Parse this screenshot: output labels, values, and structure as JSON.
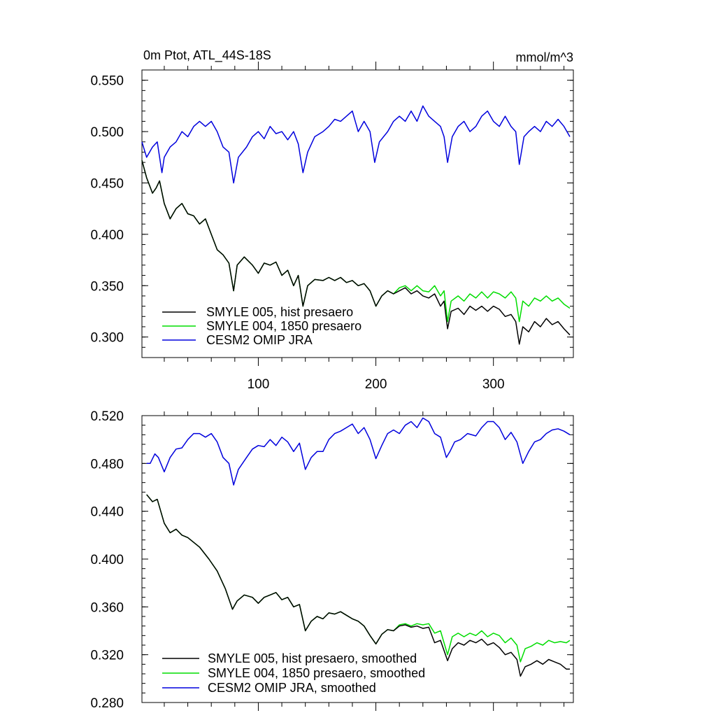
{
  "chart_data": [
    {
      "type": "line",
      "title": "0m Ptot, ATL_44S-18S",
      "units": "mmol/m^3",
      "xlim": [
        1,
        368
      ],
      "ylim": [
        0.28,
        0.56
      ],
      "x_ticks": [
        100,
        200,
        300
      ],
      "x_tick_labels": [
        "100",
        "200",
        "300"
      ],
      "y_ticks": [
        0.3,
        0.35,
        0.4,
        0.45,
        0.5,
        0.55
      ],
      "y_tick_labels": [
        "0.300",
        "0.350",
        "0.400",
        "0.450",
        "0.500",
        "0.550"
      ],
      "grid": false,
      "legend_position": "bottom-left",
      "series": [
        {
          "name": "SMYLE 005, hist presaero",
          "color": "#000000",
          "x": [
            1,
            5,
            10,
            13,
            16,
            20,
            25,
            30,
            35,
            40,
            45,
            50,
            55,
            60,
            65,
            70,
            75,
            79,
            82,
            88,
            95,
            100,
            105,
            110,
            115,
            120,
            125,
            130,
            134,
            138,
            142,
            148,
            155,
            160,
            165,
            170,
            175,
            180,
            185,
            190,
            195,
            200,
            205,
            210,
            215,
            220,
            225,
            230,
            235,
            240,
            245,
            250,
            255,
            258,
            261,
            264,
            270,
            275,
            280,
            285,
            290,
            295,
            300,
            305,
            310,
            315,
            319,
            322,
            325,
            330,
            335,
            340,
            345,
            350,
            355,
            360,
            365
          ],
          "y": [
            0.472,
            0.455,
            0.44,
            0.445,
            0.452,
            0.43,
            0.415,
            0.425,
            0.43,
            0.42,
            0.418,
            0.41,
            0.415,
            0.4,
            0.385,
            0.38,
            0.372,
            0.345,
            0.37,
            0.378,
            0.37,
            0.362,
            0.372,
            0.37,
            0.373,
            0.36,
            0.365,
            0.35,
            0.36,
            0.33,
            0.35,
            0.356,
            0.355,
            0.358,
            0.355,
            0.358,
            0.353,
            0.355,
            0.35,
            0.352,
            0.345,
            0.33,
            0.34,
            0.345,
            0.342,
            0.345,
            0.348,
            0.342,
            0.345,
            0.34,
            0.338,
            0.342,
            0.33,
            0.335,
            0.308,
            0.325,
            0.328,
            0.322,
            0.33,
            0.326,
            0.33,
            0.325,
            0.33,
            0.327,
            0.32,
            0.322,
            0.315,
            0.293,
            0.31,
            0.305,
            0.315,
            0.31,
            0.318,
            0.312,
            0.315,
            0.308,
            0.302
          ]
        },
        {
          "name": "SMYLE 004, 1850 presaero",
          "color": "#00dd00",
          "x": [
            1,
            5,
            10,
            13,
            16,
            20,
            25,
            30,
            35,
            40,
            45,
            50,
            55,
            60,
            65,
            70,
            75,
            79,
            82,
            88,
            95,
            100,
            105,
            110,
            115,
            120,
            125,
            130,
            134,
            138,
            142,
            148,
            155,
            160,
            165,
            170,
            175,
            180,
            185,
            190,
            195,
            200,
            205,
            210,
            215,
            220,
            225,
            230,
            235,
            240,
            245,
            250,
            255,
            258,
            261,
            264,
            270,
            275,
            280,
            285,
            290,
            295,
            300,
            305,
            310,
            315,
            319,
            322,
            325,
            330,
            335,
            340,
            345,
            350,
            355,
            360,
            365
          ],
          "y": [
            0.472,
            0.455,
            0.44,
            0.445,
            0.452,
            0.43,
            0.415,
            0.425,
            0.43,
            0.42,
            0.418,
            0.41,
            0.415,
            0.4,
            0.385,
            0.38,
            0.372,
            0.345,
            0.37,
            0.378,
            0.37,
            0.362,
            0.372,
            0.37,
            0.373,
            0.36,
            0.365,
            0.35,
            0.36,
            0.33,
            0.35,
            0.356,
            0.355,
            0.358,
            0.355,
            0.358,
            0.353,
            0.355,
            0.35,
            0.352,
            0.345,
            0.33,
            0.34,
            0.345,
            0.342,
            0.348,
            0.35,
            0.345,
            0.35,
            0.345,
            0.344,
            0.35,
            0.34,
            0.345,
            0.315,
            0.335,
            0.34,
            0.335,
            0.342,
            0.338,
            0.344,
            0.338,
            0.344,
            0.342,
            0.338,
            0.344,
            0.338,
            0.315,
            0.335,
            0.33,
            0.338,
            0.335,
            0.34,
            0.335,
            0.338,
            0.332,
            0.328
          ]
        },
        {
          "name": "CESM2 OMIP JRA",
          "color": "#0000dd",
          "x": [
            1,
            5,
            10,
            14,
            18,
            20,
            25,
            30,
            35,
            40,
            45,
            50,
            55,
            60,
            65,
            70,
            75,
            79,
            83,
            90,
            95,
            100,
            105,
            110,
            115,
            120,
            125,
            130,
            134,
            138,
            142,
            148,
            155,
            160,
            165,
            170,
            175,
            180,
            185,
            190,
            195,
            199,
            203,
            210,
            215,
            220,
            225,
            230,
            235,
            240,
            245,
            250,
            255,
            258,
            261,
            265,
            270,
            275,
            280,
            285,
            290,
            295,
            300,
            305,
            310,
            315,
            319,
            322,
            326,
            330,
            335,
            340,
            345,
            350,
            355,
            360,
            365
          ],
          "y": [
            0.49,
            0.475,
            0.485,
            0.49,
            0.46,
            0.475,
            0.485,
            0.49,
            0.5,
            0.495,
            0.505,
            0.51,
            0.505,
            0.51,
            0.5,
            0.485,
            0.48,
            0.45,
            0.475,
            0.485,
            0.495,
            0.5,
            0.493,
            0.505,
            0.498,
            0.5,
            0.492,
            0.5,
            0.488,
            0.46,
            0.48,
            0.495,
            0.5,
            0.505,
            0.512,
            0.51,
            0.515,
            0.52,
            0.5,
            0.51,
            0.5,
            0.47,
            0.49,
            0.5,
            0.51,
            0.515,
            0.51,
            0.52,
            0.51,
            0.525,
            0.515,
            0.51,
            0.505,
            0.495,
            0.47,
            0.495,
            0.505,
            0.51,
            0.5,
            0.505,
            0.515,
            0.52,
            0.51,
            0.505,
            0.515,
            0.505,
            0.5,
            0.468,
            0.495,
            0.5,
            0.505,
            0.5,
            0.51,
            0.505,
            0.512,
            0.505,
            0.495
          ]
        }
      ]
    },
    {
      "type": "line",
      "xlim": [
        1,
        368
      ],
      "ylim": [
        0.28,
        0.52
      ],
      "x_ticks": [
        100,
        200,
        300
      ],
      "y_ticks": [
        0.28,
        0.32,
        0.36,
        0.4,
        0.44,
        0.48,
        0.52
      ],
      "y_tick_labels": [
        "0.280",
        "0.320",
        "0.360",
        "0.400",
        "0.440",
        "0.480",
        "0.520"
      ],
      "grid": false,
      "legend_position": "bottom-left",
      "series": [
        {
          "name": "SMYLE 005, hist presaero, smoothed",
          "color": "#000000",
          "x": [
            5,
            10,
            14,
            20,
            25,
            30,
            35,
            40,
            50,
            58,
            65,
            72,
            78,
            82,
            88,
            95,
            100,
            105,
            110,
            115,
            120,
            125,
            130,
            135,
            140,
            145,
            150,
            155,
            160,
            165,
            170,
            175,
            180,
            185,
            190,
            195,
            200,
            205,
            210,
            215,
            220,
            225,
            230,
            235,
            240,
            245,
            250,
            255,
            261,
            265,
            270,
            275,
            280,
            285,
            290,
            295,
            300,
            305,
            310,
            315,
            320,
            323,
            327,
            332,
            337,
            342,
            347,
            352,
            357,
            362,
            365
          ],
          "y": [
            0.454,
            0.448,
            0.45,
            0.43,
            0.422,
            0.425,
            0.42,
            0.418,
            0.41,
            0.4,
            0.39,
            0.375,
            0.358,
            0.365,
            0.37,
            0.368,
            0.363,
            0.368,
            0.37,
            0.372,
            0.366,
            0.368,
            0.36,
            0.362,
            0.34,
            0.348,
            0.352,
            0.35,
            0.355,
            0.354,
            0.356,
            0.353,
            0.35,
            0.348,
            0.344,
            0.336,
            0.329,
            0.337,
            0.341,
            0.34,
            0.344,
            0.345,
            0.343,
            0.344,
            0.342,
            0.343,
            0.33,
            0.332,
            0.315,
            0.325,
            0.33,
            0.328,
            0.332,
            0.33,
            0.333,
            0.328,
            0.33,
            0.326,
            0.32,
            0.322,
            0.316,
            0.302,
            0.31,
            0.312,
            0.315,
            0.312,
            0.316,
            0.314,
            0.312,
            0.308,
            0.308
          ]
        },
        {
          "name": "SMYLE 004, 1850 presaero, smoothed",
          "color": "#00dd00",
          "x": [
            5,
            10,
            14,
            20,
            25,
            30,
            35,
            40,
            50,
            58,
            65,
            72,
            78,
            82,
            88,
            95,
            100,
            105,
            110,
            115,
            120,
            125,
            130,
            135,
            140,
            145,
            150,
            155,
            160,
            165,
            170,
            175,
            180,
            185,
            190,
            195,
            200,
            205,
            210,
            215,
            220,
            225,
            230,
            235,
            240,
            245,
            250,
            255,
            261,
            265,
            270,
            275,
            280,
            285,
            290,
            295,
            300,
            305,
            310,
            315,
            320,
            323,
            327,
            332,
            337,
            342,
            347,
            352,
            357,
            362,
            365
          ],
          "y": [
            0.454,
            0.448,
            0.45,
            0.43,
            0.422,
            0.425,
            0.42,
            0.418,
            0.41,
            0.4,
            0.39,
            0.375,
            0.358,
            0.365,
            0.37,
            0.368,
            0.363,
            0.368,
            0.37,
            0.372,
            0.366,
            0.368,
            0.36,
            0.362,
            0.34,
            0.348,
            0.352,
            0.35,
            0.355,
            0.354,
            0.356,
            0.353,
            0.35,
            0.348,
            0.344,
            0.336,
            0.329,
            0.337,
            0.341,
            0.34,
            0.345,
            0.346,
            0.344,
            0.346,
            0.345,
            0.346,
            0.338,
            0.34,
            0.32,
            0.335,
            0.338,
            0.335,
            0.338,
            0.336,
            0.34,
            0.335,
            0.338,
            0.336,
            0.33,
            0.334,
            0.328,
            0.314,
            0.325,
            0.327,
            0.33,
            0.328,
            0.332,
            0.33,
            0.331,
            0.33,
            0.332
          ]
        },
        {
          "name": "CESM2 OMIP JRA, smoothed",
          "color": "#0000dd",
          "x": [
            5,
            8,
            12,
            15,
            20,
            25,
            30,
            35,
            40,
            45,
            50,
            55,
            60,
            65,
            70,
            75,
            79,
            83,
            90,
            95,
            100,
            105,
            110,
            115,
            120,
            125,
            130,
            135,
            140,
            145,
            150,
            155,
            160,
            165,
            170,
            175,
            180,
            185,
            190,
            195,
            200,
            205,
            210,
            215,
            220,
            225,
            230,
            235,
            240,
            245,
            250,
            255,
            260,
            263,
            267,
            272,
            278,
            285,
            290,
            295,
            300,
            305,
            310,
            315,
            320,
            325,
            330,
            335,
            340,
            345,
            350,
            355,
            360,
            365
          ],
          "y": [
            0.48,
            0.48,
            0.488,
            0.485,
            0.473,
            0.485,
            0.492,
            0.493,
            0.5,
            0.505,
            0.505,
            0.502,
            0.505,
            0.498,
            0.485,
            0.48,
            0.462,
            0.475,
            0.485,
            0.492,
            0.495,
            0.494,
            0.5,
            0.495,
            0.502,
            0.498,
            0.49,
            0.497,
            0.475,
            0.485,
            0.49,
            0.49,
            0.5,
            0.505,
            0.507,
            0.51,
            0.513,
            0.505,
            0.51,
            0.5,
            0.484,
            0.495,
            0.505,
            0.508,
            0.505,
            0.512,
            0.515,
            0.51,
            0.518,
            0.515,
            0.505,
            0.502,
            0.485,
            0.49,
            0.498,
            0.5,
            0.505,
            0.503,
            0.51,
            0.515,
            0.515,
            0.51,
            0.5,
            0.506,
            0.498,
            0.48,
            0.49,
            0.498,
            0.5,
            0.505,
            0.508,
            0.509,
            0.507,
            0.504
          ]
        }
      ]
    }
  ]
}
